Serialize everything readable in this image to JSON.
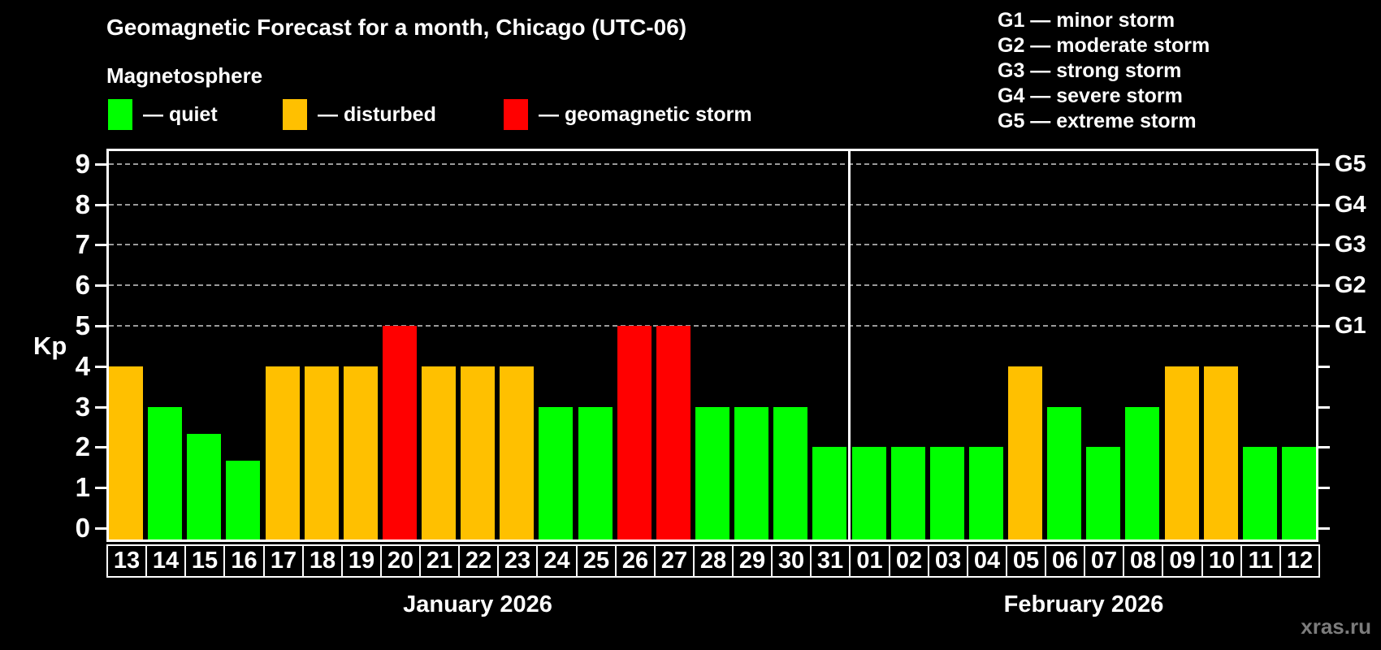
{
  "title": "Geomagnetic Forecast for a month, Chicago (UTC-06)",
  "subtitle": "Magnetosphere",
  "legend": {
    "items": [
      {
        "key": "quiet",
        "label": "— quiet",
        "color": "#00ff00"
      },
      {
        "key": "disturbed",
        "label": "— disturbed",
        "color": "#ffc000"
      },
      {
        "key": "storm",
        "label": "— geomagnetic storm",
        "color": "#ff0000"
      }
    ]
  },
  "g_scale_legend": [
    "G1 — minor storm",
    "G2 — moderate storm",
    "G3 — strong storm",
    "G4 — severe storm",
    "G5 — extreme storm"
  ],
  "watermark": "xras.ru",
  "chart_data": {
    "type": "bar",
    "title": "Geomagnetic Forecast for a month, Chicago (UTC-06)",
    "ylabel": "Kp",
    "ylim": [
      0,
      9
    ],
    "yticks": [
      0,
      1,
      2,
      3,
      4,
      5,
      6,
      7,
      8,
      9
    ],
    "gridlines": [
      5,
      6,
      7,
      8,
      9
    ],
    "grid": "dashed horizontal lines at storm levels G1–G5 only",
    "legend_position": "top",
    "right_axis": [
      {
        "level": 5,
        "label": "G1"
      },
      {
        "level": 6,
        "label": "G2"
      },
      {
        "level": 7,
        "label": "G3"
      },
      {
        "level": 8,
        "label": "G4"
      },
      {
        "level": 9,
        "label": "G5"
      }
    ],
    "months": [
      {
        "label": "January 2026",
        "days": 19
      },
      {
        "label": "February 2026",
        "days": 12
      }
    ],
    "categories": [
      "13",
      "14",
      "15",
      "16",
      "17",
      "18",
      "19",
      "20",
      "21",
      "22",
      "23",
      "24",
      "25",
      "26",
      "27",
      "28",
      "29",
      "30",
      "31",
      "01",
      "02",
      "03",
      "04",
      "05",
      "06",
      "07",
      "08",
      "09",
      "10",
      "11",
      "12"
    ],
    "values": [
      4,
      3,
      2.33,
      1.67,
      4,
      4,
      4,
      5,
      4,
      4,
      4,
      3,
      3,
      5,
      5,
      3,
      3,
      3,
      2,
      2,
      2,
      2,
      2,
      4,
      3,
      2,
      3,
      4,
      4,
      2,
      2
    ],
    "statuses": [
      "disturbed",
      "quiet",
      "quiet",
      "quiet",
      "disturbed",
      "disturbed",
      "disturbed",
      "storm",
      "disturbed",
      "disturbed",
      "disturbed",
      "quiet",
      "quiet",
      "storm",
      "storm",
      "quiet",
      "quiet",
      "quiet",
      "quiet",
      "quiet",
      "quiet",
      "quiet",
      "quiet",
      "disturbed",
      "quiet",
      "quiet",
      "quiet",
      "disturbed",
      "disturbed",
      "quiet",
      "quiet"
    ],
    "colors": {
      "quiet": "#00ff00",
      "disturbed": "#ffc000",
      "storm": "#ff0000"
    }
  }
}
